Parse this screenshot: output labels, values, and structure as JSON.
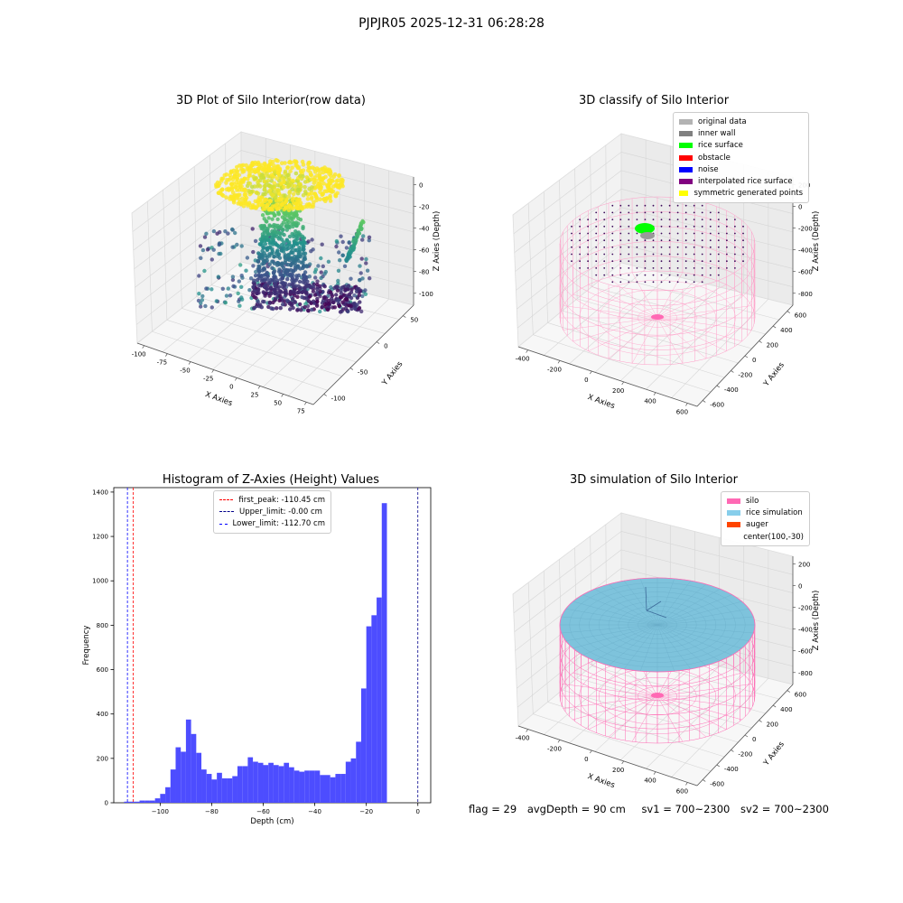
{
  "suptitle": "PJPJR05 2025-12-31 06:28:28",
  "chart_data": [
    {
      "type": "scatter",
      "title": "3D Plot of Silo Interior(row data)",
      "xlabel": "X Axies",
      "ylabel": "Y Axies",
      "zlabel": "Z Axies (Depth)",
      "x_ticks": [
        "-100",
        "-75",
        "-50",
        "-25",
        "0",
        "25",
        "50",
        "75"
      ],
      "y_ticks": [
        "-100",
        "-50",
        "0",
        "50"
      ],
      "z_ticks": [
        "0",
        "-20",
        "-40",
        "-60",
        "-80",
        "-100"
      ],
      "xlim": [
        -115,
        80
      ],
      "ylim": [
        -120,
        70
      ],
      "zlim": [
        -115,
        5
      ],
      "colormap": "viridis"
    },
    {
      "type": "scatter",
      "title": "3D classify of Silo Interior",
      "xlabel": "X Axies",
      "ylabel": "Y Axies",
      "zlabel": "Z Axies (Depth)",
      "x_ticks": [
        "-400",
        "-200",
        "0",
        "200",
        "400",
        "600"
      ],
      "y_ticks": [
        "-600",
        "-400",
        "-200",
        "0",
        "200",
        "400",
        "600"
      ],
      "z_ticks": [
        "200",
        "0",
        "-200",
        "-400",
        "-600",
        "-800"
      ],
      "legend": [
        {
          "label": "original data",
          "color": "#b3b3b3"
        },
        {
          "label": "inner wall",
          "color": "#808080"
        },
        {
          "label": "rice surface",
          "color": "#00ff00"
        },
        {
          "label": "obstacle",
          "color": "#ff0000"
        },
        {
          "label": "noise",
          "color": "#0000ff"
        },
        {
          "label": "interpolated rice surface",
          "color": "#800080"
        },
        {
          "label": "symmetric generated points",
          "color": "#ffff00"
        }
      ]
    },
    {
      "type": "bar",
      "title": "Histogram of Z-Axies (Height) Values",
      "xlabel": "Depth (cm)",
      "ylabel": "Frequency",
      "xlim": [
        -118,
        5
      ],
      "ylim": [
        0,
        1420
      ],
      "x_ticks": [
        -100,
        -80,
        -60,
        -40,
        -20,
        0
      ],
      "y_ticks": [
        0,
        200,
        400,
        600,
        800,
        1000,
        1200,
        1400
      ],
      "bar_color": "#4d4dff",
      "bin_width": 2,
      "bin_start": -114,
      "values": [
        5,
        5,
        5,
        10,
        10,
        10,
        20,
        40,
        70,
        150,
        250,
        230,
        375,
        310,
        225,
        150,
        130,
        105,
        135,
        110,
        110,
        120,
        165,
        165,
        205,
        185,
        180,
        170,
        180,
        170,
        165,
        180,
        160,
        145,
        140,
        145,
        145,
        145,
        125,
        125,
        115,
        130,
        130,
        185,
        200,
        275,
        515,
        795,
        845,
        925,
        1350,
        0
      ],
      "vlines": [
        {
          "label": "first_peak: -110.45 cm",
          "x": -110.45,
          "color": "#ff0000"
        },
        {
          "label": "Upper_limit: -0.00 cm",
          "x": -0.0,
          "color": "#00008b"
        },
        {
          "label": "Lower_limit: -112.70 cm",
          "x": -112.7,
          "color": "#0000ff"
        }
      ]
    },
    {
      "type": "scatter",
      "title": "3D simulation of Silo Interior",
      "xlabel": "X Axies",
      "ylabel": "Y Axies",
      "zlabel": "Z Axies (Depth)",
      "x_ticks": [
        "-400",
        "-200",
        "0",
        "200",
        "400",
        "600"
      ],
      "y_ticks": [
        "-600",
        "-400",
        "-200",
        "0",
        "200",
        "400",
        "600"
      ],
      "z_ticks": [
        "200",
        "0",
        "-200",
        "-400",
        "-600",
        "-800"
      ],
      "legend": [
        {
          "label": "silo",
          "color": "#ff69b4"
        },
        {
          "label": "rice simulation",
          "color": "#87ceeb"
        },
        {
          "label": "auger",
          "color": "#ff4500"
        },
        {
          "label": "center(100,-30)",
          "color": ""
        }
      ]
    }
  ],
  "footer": {
    "flag": "flag = 29",
    "avg_depth": "avgDepth = 90 cm",
    "sv1": "sv1 = 700~2300",
    "sv2": "sv2 = 700~2300"
  }
}
